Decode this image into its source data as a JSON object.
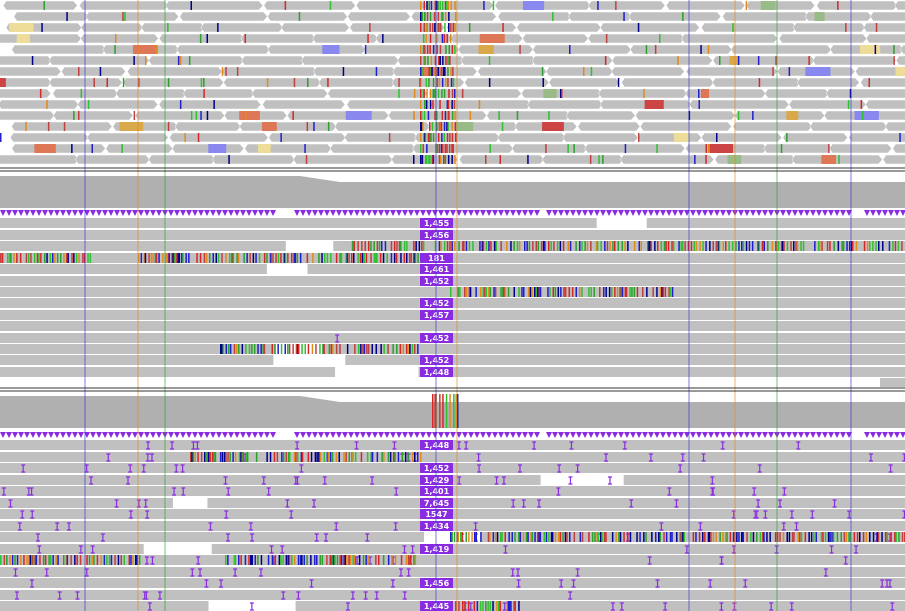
{
  "panels": [
    {
      "insertion_labels": [
        "1,455",
        "1,456",
        "181",
        "1,461",
        "1,452",
        "1,452",
        "1,457",
        "1,452",
        "1,452",
        "1,448"
      ]
    },
    {
      "insertion_labels": [
        "1,448",
        "1,452",
        "1,429",
        "1,401",
        "7,645",
        "1547",
        "1,434",
        "1,419",
        "1,456",
        "1,445"
      ]
    }
  ]
}
